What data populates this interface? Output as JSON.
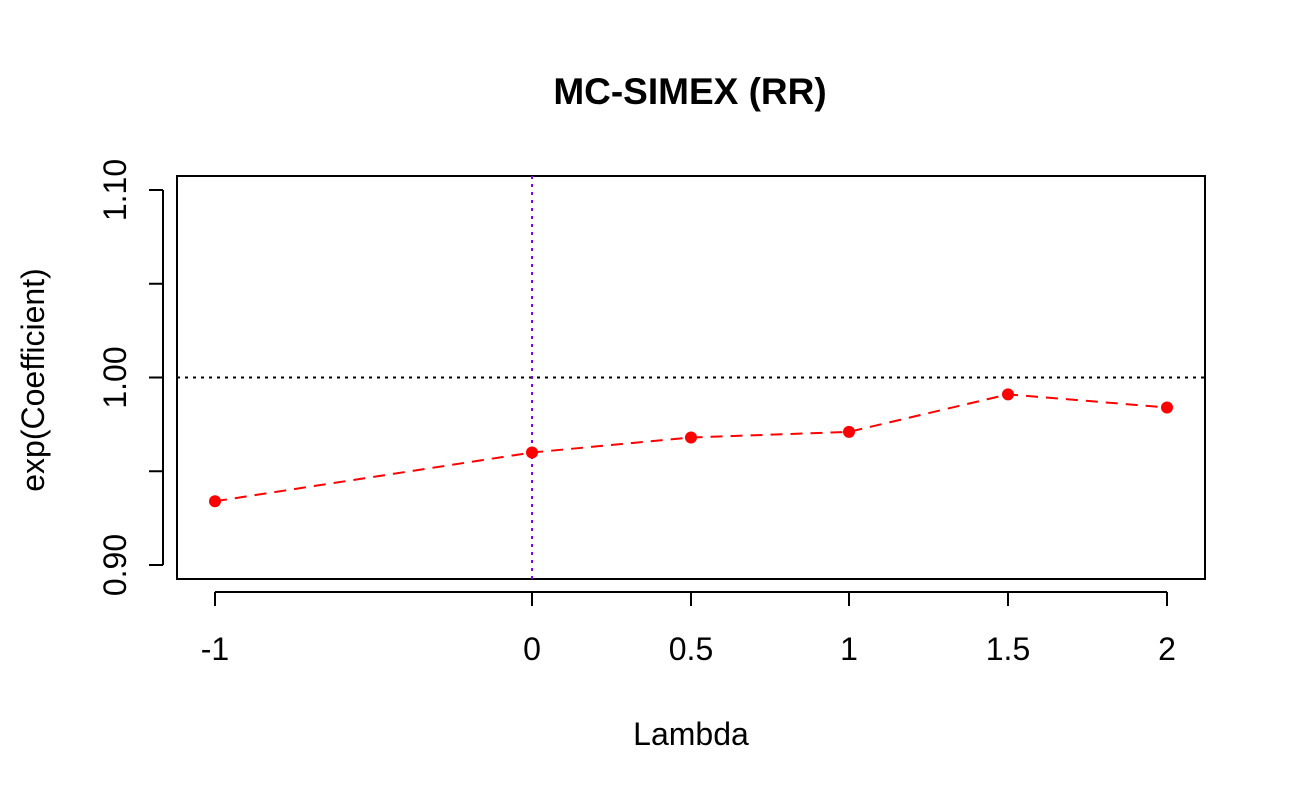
{
  "chart_data": {
    "type": "line",
    "title": "MC-SIMEX (RR)",
    "xlabel": "Lambda",
    "ylabel": "exp(Coefficient)",
    "x_ticks": [
      "-1",
      "0",
      "0.5",
      "1",
      "1.5",
      "2"
    ],
    "y_ticks": [
      "0.90",
      "1.00",
      "1.10"
    ],
    "y_minor_ticks": [
      0.95,
      1.05
    ],
    "series": [
      {
        "x": [
          "-1",
          "0",
          "0.5",
          "1",
          "1.5",
          "2"
        ],
        "values": [
          0.934,
          0.96,
          0.968,
          0.971,
          0.991,
          0.984
        ],
        "color": "#ff0000",
        "line_style": "dashed",
        "marker": "filled-circle"
      }
    ],
    "reference_lines": [
      {
        "orientation": "horizontal",
        "value": 1.0,
        "color": "#000000",
        "style": "dotted"
      },
      {
        "orientation": "vertical",
        "value": "0",
        "color": "#7f00ff",
        "style": "dotted"
      }
    ],
    "ylim": [
      0.892,
      1.108
    ],
    "grid": false,
    "legend": "none"
  }
}
